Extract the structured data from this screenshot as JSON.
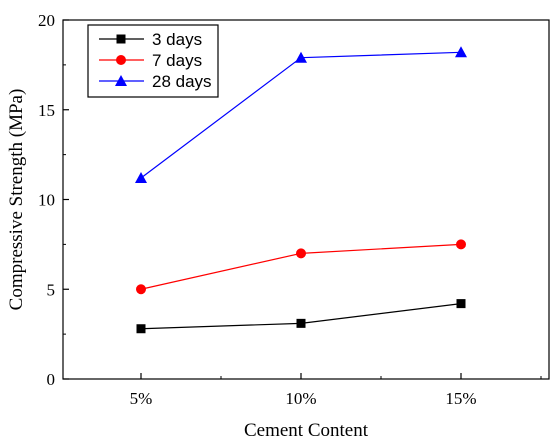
{
  "chart_data": {
    "type": "line",
    "title": "",
    "xlabel": "Cement Content",
    "ylabel": "Compressive Strength (MPa)",
    "categories": [
      "5%",
      "10%",
      "15%"
    ],
    "ylim": [
      0,
      20
    ],
    "yticks": [
      "0",
      "5",
      "10",
      "15",
      "20"
    ],
    "grid": false,
    "legend": "top-left",
    "series": [
      {
        "name": "3 days",
        "values": [
          2.8,
          3.1,
          4.2
        ],
        "color": "#000000",
        "marker": "square"
      },
      {
        "name": "7 days",
        "values": [
          5.0,
          7.0,
          7.5
        ],
        "color": "#ff0000",
        "marker": "circle"
      },
      {
        "name": "28 days",
        "values": [
          11.2,
          17.9,
          18.2
        ],
        "color": "#0000ff",
        "marker": "triangle"
      }
    ]
  }
}
